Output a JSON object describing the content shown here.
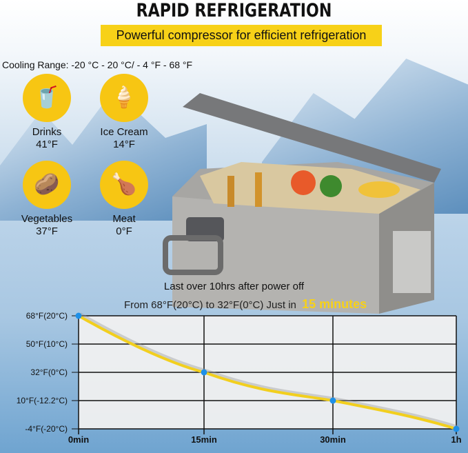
{
  "title": "RAPID REFRIGERATION",
  "subtitle": "Powerful compressor for efficient refrigeration",
  "cooling_range": "Cooling Range: -20 °C - 20 °C/ - 4 °F - 68 °F",
  "features": [
    {
      "name": "Drinks",
      "temp": "41°F",
      "icon": "drink-cup-icon"
    },
    {
      "name": "Ice Cream",
      "temp": "14°F",
      "icon": "ice-cream-icon"
    },
    {
      "name": "Vegetables",
      "temp": "37°F",
      "icon": "vegetables-icon"
    },
    {
      "name": "Meat",
      "temp": "0°F",
      "icon": "meat-drumstick-icon"
    }
  ],
  "chart_heading": "Last over 10hrs after power off",
  "chart_sub": "From 68°F(20°C) to 32°F(0°C) Just in",
  "chart_highlight": "15 minutes",
  "colors": {
    "accent": "#f7d118",
    "line": "#f2cf1e",
    "point": "#1e90e8"
  },
  "chart_data": {
    "type": "line",
    "categories": [
      "0min",
      "15min",
      "30min",
      "1h"
    ],
    "y_ticks": [
      "68°F(20°C)",
      "50°F(10°C)",
      "32°F(0°C)",
      "10°F(-12.2°C)",
      "-4°F(-20°C)"
    ],
    "y_tick_values": [
      68,
      50,
      32,
      10,
      -4
    ],
    "values": [
      68,
      32,
      10,
      -4
    ],
    "grid": true
  }
}
